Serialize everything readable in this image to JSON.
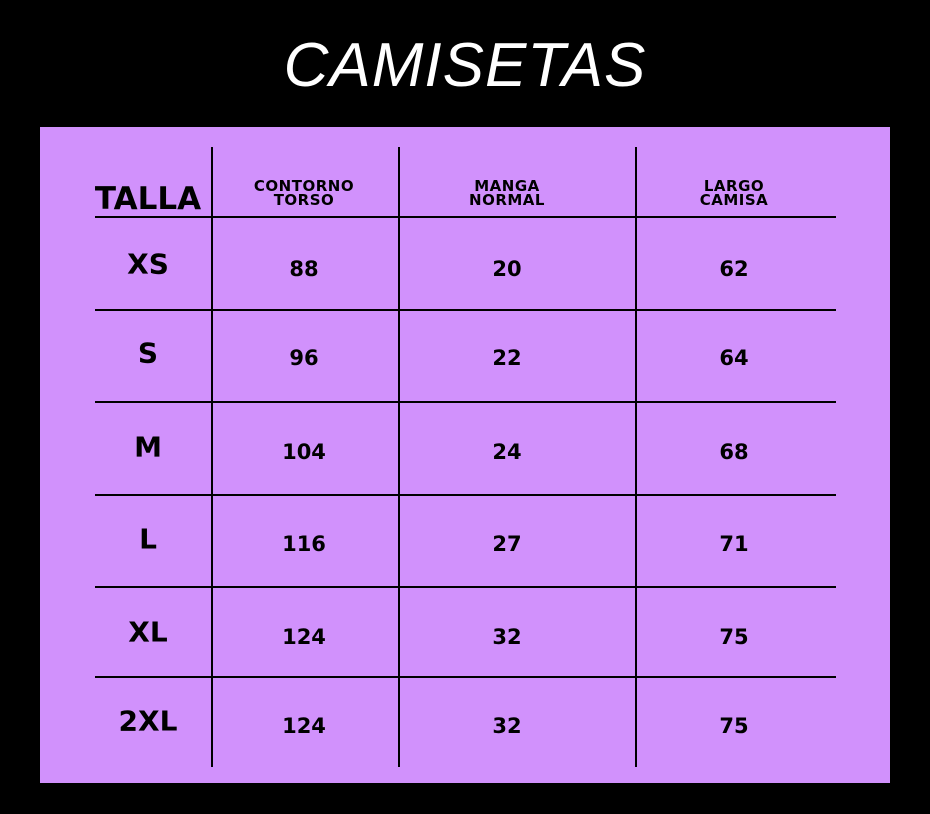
{
  "title": "CAMISETAS",
  "colors": {
    "background": "#000000",
    "panel": "#D191FC",
    "text": "#000000",
    "title": "#FFFFFF"
  },
  "table": {
    "headers": [
      "TALLA",
      "CONTORNO\nTORSO",
      "MANGA\nNORMAL",
      "LARGO\nCAMISA"
    ],
    "rows": [
      [
        "XS",
        "88",
        "20",
        "62"
      ],
      [
        "S",
        "96",
        "22",
        "64"
      ],
      [
        "M",
        "104",
        "24",
        "68"
      ],
      [
        "L",
        "116",
        "27",
        "71"
      ],
      [
        "XL",
        "124",
        "32",
        "75"
      ],
      [
        "2XL",
        "124",
        "32",
        "75"
      ]
    ]
  }
}
